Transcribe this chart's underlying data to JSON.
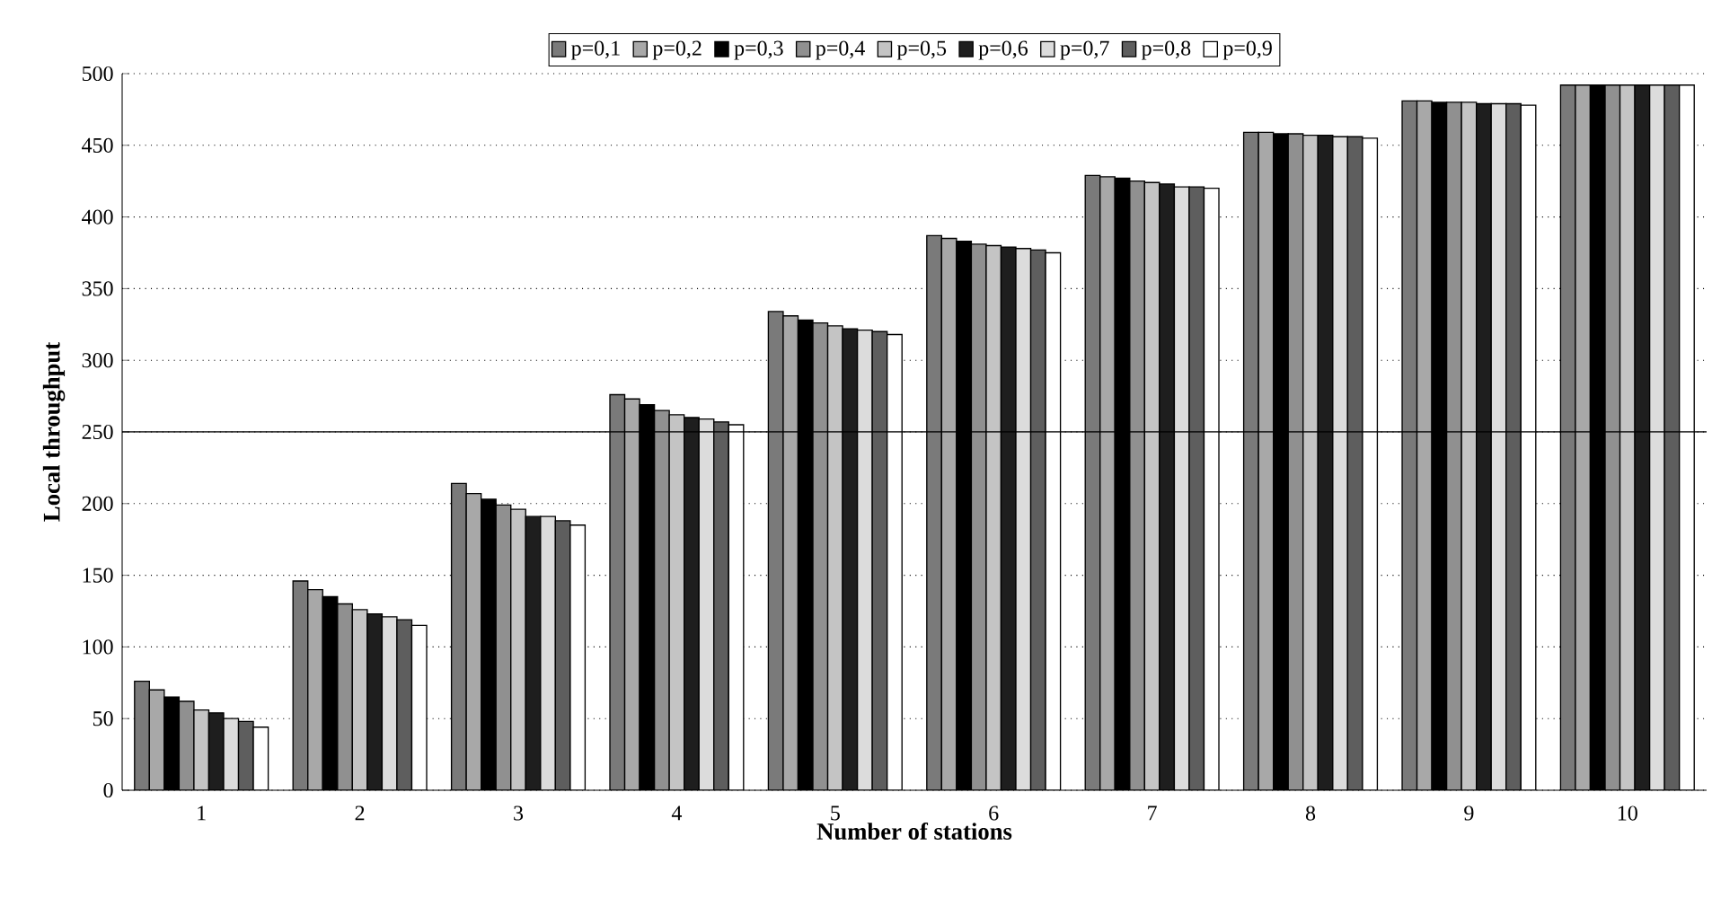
{
  "chart_data": {
    "type": "bar",
    "xlabel": "Number of stations",
    "ylabel": "Local throughput",
    "categories": [
      "1",
      "2",
      "3",
      "4",
      "5",
      "6",
      "7",
      "8",
      "9",
      "10"
    ],
    "series": [
      {
        "name": "p=0,1",
        "color": "#7a7a7a",
        "values": [
          76,
          146,
          214,
          276,
          334,
          387,
          429,
          459,
          481,
          492
        ]
      },
      {
        "name": "p=0,2",
        "color": "#a8a8a8",
        "values": [
          70,
          140,
          207,
          273,
          331,
          385,
          428,
          459,
          481,
          492
        ]
      },
      {
        "name": "p=0,3",
        "color": "#000000",
        "values": [
          65,
          135,
          203,
          269,
          328,
          383,
          427,
          458,
          480,
          492
        ]
      },
      {
        "name": "p=0,4",
        "color": "#909090",
        "values": [
          62,
          130,
          199,
          265,
          326,
          381,
          425,
          458,
          480,
          492
        ]
      },
      {
        "name": "p=0,5",
        "color": "#c4c4c4",
        "values": [
          56,
          126,
          196,
          262,
          324,
          380,
          424,
          457,
          480,
          492
        ]
      },
      {
        "name": "p=0,6",
        "color": "#1e1e1e",
        "values": [
          54,
          123,
          191,
          260,
          322,
          379,
          423,
          457,
          479,
          492
        ]
      },
      {
        "name": "p=0,7",
        "color": "#dcdcdc",
        "values": [
          50,
          121,
          191,
          259,
          321,
          378,
          421,
          456,
          479,
          492
        ]
      },
      {
        "name": "p=0,8",
        "color": "#5e5e5e",
        "values": [
          48,
          119,
          188,
          257,
          320,
          377,
          421,
          456,
          479,
          492
        ]
      },
      {
        "name": "p=0,9",
        "color": "#ffffff",
        "values": [
          44,
          115,
          185,
          255,
          318,
          375,
          420,
          455,
          478,
          492
        ]
      }
    ],
    "ylim": [
      0,
      500
    ],
    "yticks": [
      0,
      50,
      100,
      150,
      200,
      250,
      300,
      350,
      400,
      450,
      500
    ],
    "grid": "y",
    "legend": "top",
    "ref_lines": [
      {
        "axis": "y",
        "value": 250,
        "color": "#000000",
        "line_style": "solid"
      }
    ]
  }
}
